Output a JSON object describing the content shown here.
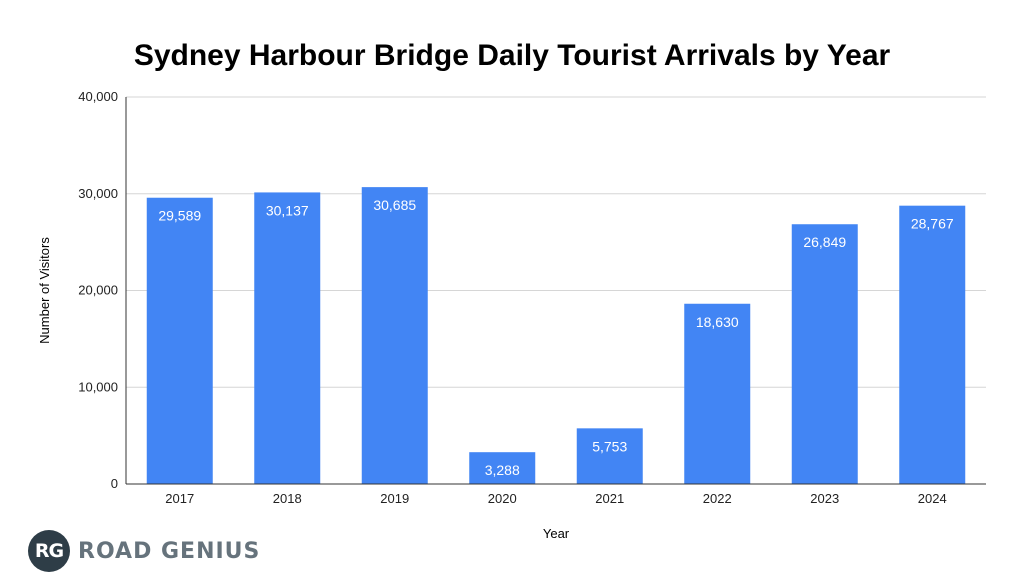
{
  "chart_data": {
    "type": "bar",
    "title": "Sydney Harbour Bridge Daily Tourist Arrivals by Year",
    "xlabel": "Year",
    "ylabel": "Number of Visitors",
    "categories": [
      "2017",
      "2018",
      "2019",
      "2020",
      "2021",
      "2022",
      "2023",
      "2024"
    ],
    "values": [
      29589,
      30137,
      30685,
      3288,
      5753,
      18630,
      26849,
      28767
    ],
    "value_labels": [
      "29,589",
      "30,137",
      "30,685",
      "3,288",
      "5,753",
      "18,630",
      "26,849",
      "28,767"
    ],
    "ylim": [
      0,
      40000
    ],
    "yticks": [
      0,
      10000,
      20000,
      30000,
      40000
    ],
    "ytick_labels": [
      "0",
      "10,000",
      "20,000",
      "30,000",
      "40,000"
    ],
    "grid": true,
    "legend": "none",
    "bar_color": "#4285f4"
  },
  "branding": {
    "logo_badge": "RG",
    "logo_text": "ROAD GENIUS"
  }
}
